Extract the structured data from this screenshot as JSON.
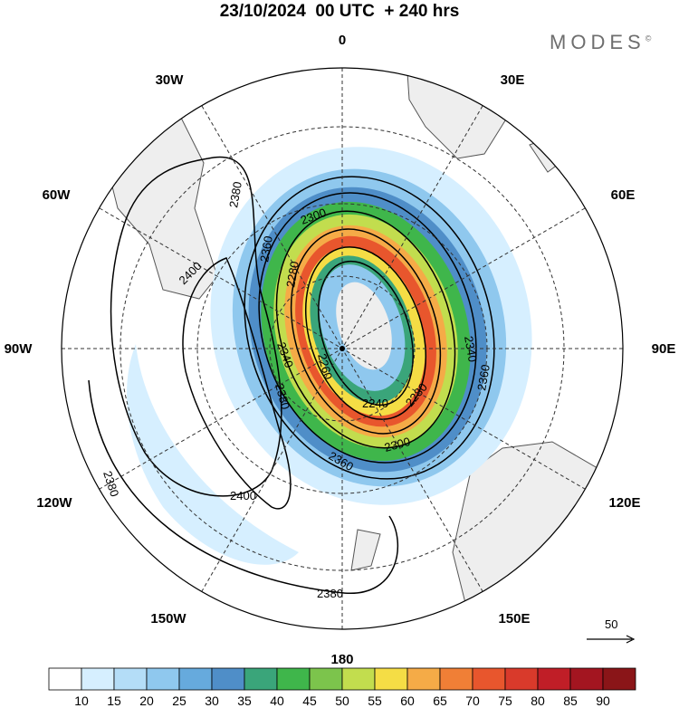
{
  "title": "23/10/2024  00 UTC  + 240 hrs",
  "brand": {
    "name": "MODES",
    "mark": "©"
  },
  "longitude_labels": {
    "top": "0",
    "left_top": "30W",
    "right_top": "30E",
    "left_upper": "60W",
    "right_upper": "60E",
    "left_mid": "90W",
    "right_mid": "90E",
    "left_lower": "120W",
    "right_lower": "120E",
    "left_bottom": "150W",
    "right_bottom": "150E",
    "bottom": "180"
  },
  "contour_labels": [
    "2380",
    "2400",
    "2360",
    "2300",
    "2280",
    "2340",
    "2260",
    "2240",
    "2280",
    "2300",
    "2360",
    "2340",
    "2360",
    "2380",
    "2400",
    "2380",
    "2380"
  ],
  "reference_vector": {
    "label": "50"
  },
  "colorbar": {
    "ticks": [
      "10",
      "15",
      "20",
      "25",
      "30",
      "35",
      "40",
      "45",
      "50",
      "55",
      "60",
      "65",
      "70",
      "75",
      "80",
      "85",
      "90"
    ],
    "colors": [
      "#ffffff",
      "#d6efff",
      "#b4ddf7",
      "#8fc8ee",
      "#66aadd",
      "#4f8ec8",
      "#3aa57a",
      "#3fb64b",
      "#7cc44c",
      "#c2dd4e",
      "#f5dd45",
      "#f5ab47",
      "#f07f36",
      "#e8562d",
      "#d93a2b",
      "#c01e27",
      "#a31520",
      "#8a1518"
    ]
  },
  "colors": {
    "land": "#eeeeee",
    "coast": "#555555",
    "grid": "#333333"
  }
}
